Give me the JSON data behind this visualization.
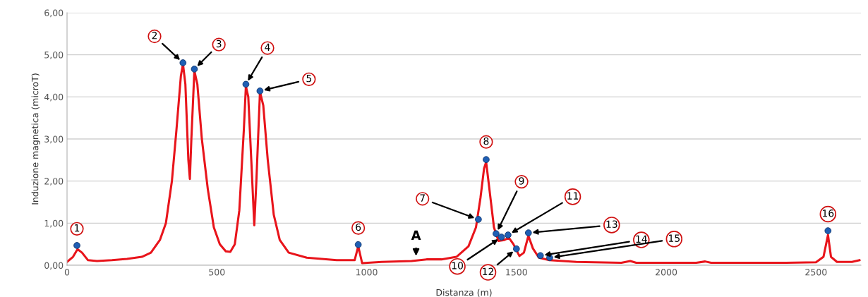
{
  "chart_data": {
    "type": "line",
    "xlabel": "Distanza (m)",
    "ylabel": "Induzione magnetica (microT)",
    "xlim": [
      0,
      2650
    ],
    "xticks": [
      0,
      500,
      1000,
      1500,
      2000,
      2500
    ],
    "ylim": [
      0,
      6
    ],
    "yticks": [
      {
        "value": 0,
        "label": "0,00"
      },
      {
        "value": 1,
        "label": "1,00"
      },
      {
        "value": 2,
        "label": "2,00"
      },
      {
        "value": 3,
        "label": "3,00"
      },
      {
        "value": 4,
        "label": "4,00"
      },
      {
        "value": 5,
        "label": "5,00"
      },
      {
        "value": 6,
        "label": "6,00"
      }
    ],
    "grid": "y",
    "legend": false,
    "series": [
      {
        "color": "#e8141b",
        "marker": "none",
        "line_style": "solid",
        "x": [
          0,
          20,
          35,
          50,
          70,
          100,
          150,
          200,
          250,
          280,
          310,
          330,
          350,
          365,
          380,
          387,
          395,
          405,
          410,
          415,
          425,
          435,
          450,
          470,
          490,
          510,
          530,
          545,
          560,
          575,
          590,
          597,
          605,
          615,
          625,
          632,
          644,
          655,
          670,
          690,
          710,
          740,
          800,
          900,
          960,
          972,
          985,
          1050,
          1150,
          1200,
          1250,
          1300,
          1340,
          1365,
          1380,
          1392,
          1399,
          1410,
          1425,
          1440,
          1460,
          1475,
          1490,
          1510,
          1525,
          1540,
          1555,
          1575,
          1610,
          1700,
          1850,
          1880,
          1900,
          2100,
          2130,
          2150,
          2400,
          2500,
          2525,
          2540,
          2550,
          2570,
          2620,
          2645
        ],
        "values": [
          0.08,
          0.2,
          0.38,
          0.3,
          0.12,
          0.1,
          0.12,
          0.15,
          0.2,
          0.3,
          0.6,
          1.0,
          2.0,
          3.2,
          4.5,
          4.78,
          4.3,
          2.5,
          2.05,
          3.0,
          4.62,
          4.3,
          3.0,
          1.8,
          0.9,
          0.5,
          0.33,
          0.32,
          0.5,
          1.3,
          3.2,
          4.25,
          4.0,
          2.5,
          0.95,
          2.0,
          4.12,
          3.8,
          2.5,
          1.2,
          0.6,
          0.3,
          0.18,
          0.12,
          0.12,
          0.45,
          0.05,
          0.08,
          0.1,
          0.14,
          0.14,
          0.2,
          0.45,
          0.9,
          1.6,
          2.3,
          2.45,
          1.8,
          0.9,
          0.58,
          0.6,
          0.65,
          0.5,
          0.22,
          0.3,
          0.7,
          0.4,
          0.18,
          0.12,
          0.08,
          0.06,
          0.1,
          0.06,
          0.06,
          0.09,
          0.06,
          0.06,
          0.07,
          0.2,
          0.72,
          0.2,
          0.08,
          0.08,
          0.12
        ]
      },
      {
        "type": "scatter",
        "color": "#1f5fb4",
        "marker": "circle",
        "x": [
          33,
          387,
          425,
          597,
          644,
          972,
          1373,
          1399,
          1432,
          1450,
          1472,
          1500,
          1540,
          1580,
          1611,
          2540
        ],
        "values": [
          0.47,
          4.81,
          4.66,
          4.3,
          4.14,
          0.49,
          1.09,
          2.51,
          0.75,
          0.67,
          0.72,
          0.39,
          0.77,
          0.23,
          0.18,
          0.82
        ]
      }
    ],
    "annotations": [
      {
        "text": "1",
        "x": 33,
        "y": 0.47
      },
      {
        "text": "2",
        "x": 387,
        "y": 4.81
      },
      {
        "text": "3",
        "x": 425,
        "y": 4.66
      },
      {
        "text": "4",
        "x": 597,
        "y": 4.3
      },
      {
        "text": "5",
        "x": 644,
        "y": 4.14
      },
      {
        "text": "6",
        "x": 972,
        "y": 0.49
      },
      {
        "text": "7",
        "x": 1373,
        "y": 1.09
      },
      {
        "text": "8",
        "x": 1399,
        "y": 2.51
      },
      {
        "text": "9",
        "x": 1432,
        "y": 0.75
      },
      {
        "text": "10",
        "x": 1450,
        "y": 0.67
      },
      {
        "text": "11",
        "x": 1472,
        "y": 0.72
      },
      {
        "text": "12",
        "x": 1500,
        "y": 0.39
      },
      {
        "text": "13",
        "x": 1540,
        "y": 0.77
      },
      {
        "text": "14",
        "x": 1580,
        "y": 0.23
      },
      {
        "text": "15",
        "x": 1611,
        "y": 0.18
      },
      {
        "text": "16",
        "x": 2540,
        "y": 0.82
      },
      {
        "text": "A",
        "x": 1165,
        "y": 0.13
      }
    ]
  }
}
